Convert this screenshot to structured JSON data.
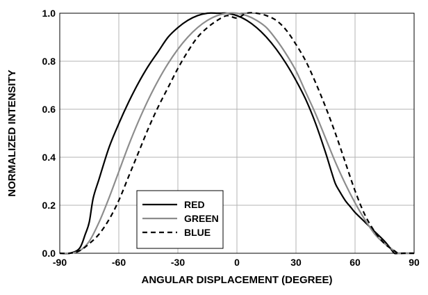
{
  "chart_data": {
    "type": "line",
    "title": "",
    "xlabel": "ANGULAR DISPLACEMENT (DEGREE)",
    "ylabel": "NORMALIZED INTENSITY",
    "xlim": [
      -90,
      90
    ],
    "ylim": [
      0,
      1.0
    ],
    "xticks": [
      "-90",
      "-60",
      "-30",
      "0",
      "30",
      "60",
      "90"
    ],
    "yticks": [
      "0.0",
      "0.2",
      "0.4",
      "0.6",
      "0.8",
      "1.0"
    ],
    "grid": true,
    "legend": "lower-left",
    "series": [
      {
        "name": "RED",
        "color": "#000000",
        "dash": "solid",
        "x": [
          -90,
          -85,
          -80,
          -77,
          -75,
          -73,
          -70,
          -65,
          -60,
          -55,
          -50,
          -45,
          -40,
          -35,
          -30,
          -25,
          -20,
          -15,
          -10,
          -8,
          -5,
          0,
          5,
          10,
          15,
          20,
          25,
          30,
          35,
          40,
          45,
          48,
          50,
          52,
          55,
          58,
          60,
          65,
          70,
          75,
          78,
          80,
          82,
          85,
          90
        ],
        "y": [
          0.0,
          0.0,
          0.02,
          0.08,
          0.13,
          0.23,
          0.31,
          0.44,
          0.54,
          0.63,
          0.71,
          0.78,
          0.84,
          0.9,
          0.94,
          0.97,
          0.99,
          1.0,
          1.0,
          1.0,
          1.0,
          0.99,
          0.97,
          0.94,
          0.9,
          0.85,
          0.79,
          0.72,
          0.64,
          0.54,
          0.42,
          0.34,
          0.29,
          0.26,
          0.22,
          0.19,
          0.17,
          0.13,
          0.09,
          0.05,
          0.02,
          0.0,
          0.0,
          0.0,
          0.0
        ]
      },
      {
        "name": "GREEN",
        "color": "#8c8c8c",
        "dash": "solid",
        "x": [
          -90,
          -85,
          -80,
          -75,
          -70,
          -65,
          -60,
          -55,
          -50,
          -45,
          -40,
          -35,
          -30,
          -25,
          -20,
          -15,
          -10,
          -5,
          0,
          5,
          10,
          15,
          20,
          25,
          30,
          35,
          40,
          45,
          50,
          55,
          60,
          65,
          70,
          75,
          80,
          82,
          85,
          90
        ],
        "y": [
          0.0,
          0.0,
          0.01,
          0.05,
          0.13,
          0.23,
          0.34,
          0.45,
          0.55,
          0.64,
          0.72,
          0.79,
          0.85,
          0.9,
          0.94,
          0.97,
          0.99,
          1.0,
          1.0,
          0.99,
          0.97,
          0.94,
          0.89,
          0.83,
          0.76,
          0.67,
          0.58,
          0.48,
          0.38,
          0.29,
          0.21,
          0.14,
          0.08,
          0.04,
          0.01,
          0.0,
          0.0,
          0.0
        ]
      },
      {
        "name": "BLUE",
        "color": "#000000",
        "dash": "dashed",
        "x": [
          -90,
          -85,
          -80,
          -75,
          -70,
          -65,
          -60,
          -55,
          -50,
          -45,
          -40,
          -35,
          -30,
          -25,
          -20,
          -15,
          -10,
          -5,
          0,
          5,
          10,
          15,
          20,
          25,
          30,
          35,
          40,
          45,
          50,
          55,
          60,
          65,
          70,
          75,
          80,
          82,
          85,
          90
        ],
        "y": [
          0.0,
          0.0,
          0.01,
          0.04,
          0.08,
          0.14,
          0.22,
          0.32,
          0.42,
          0.52,
          0.61,
          0.69,
          0.77,
          0.84,
          0.9,
          0.94,
          0.97,
          0.99,
          0.98,
          1.0,
          1.0,
          0.99,
          0.97,
          0.93,
          0.87,
          0.8,
          0.71,
          0.61,
          0.5,
          0.38,
          0.26,
          0.16,
          0.09,
          0.04,
          0.01,
          0.0,
          0.0,
          0.0
        ]
      }
    ]
  }
}
